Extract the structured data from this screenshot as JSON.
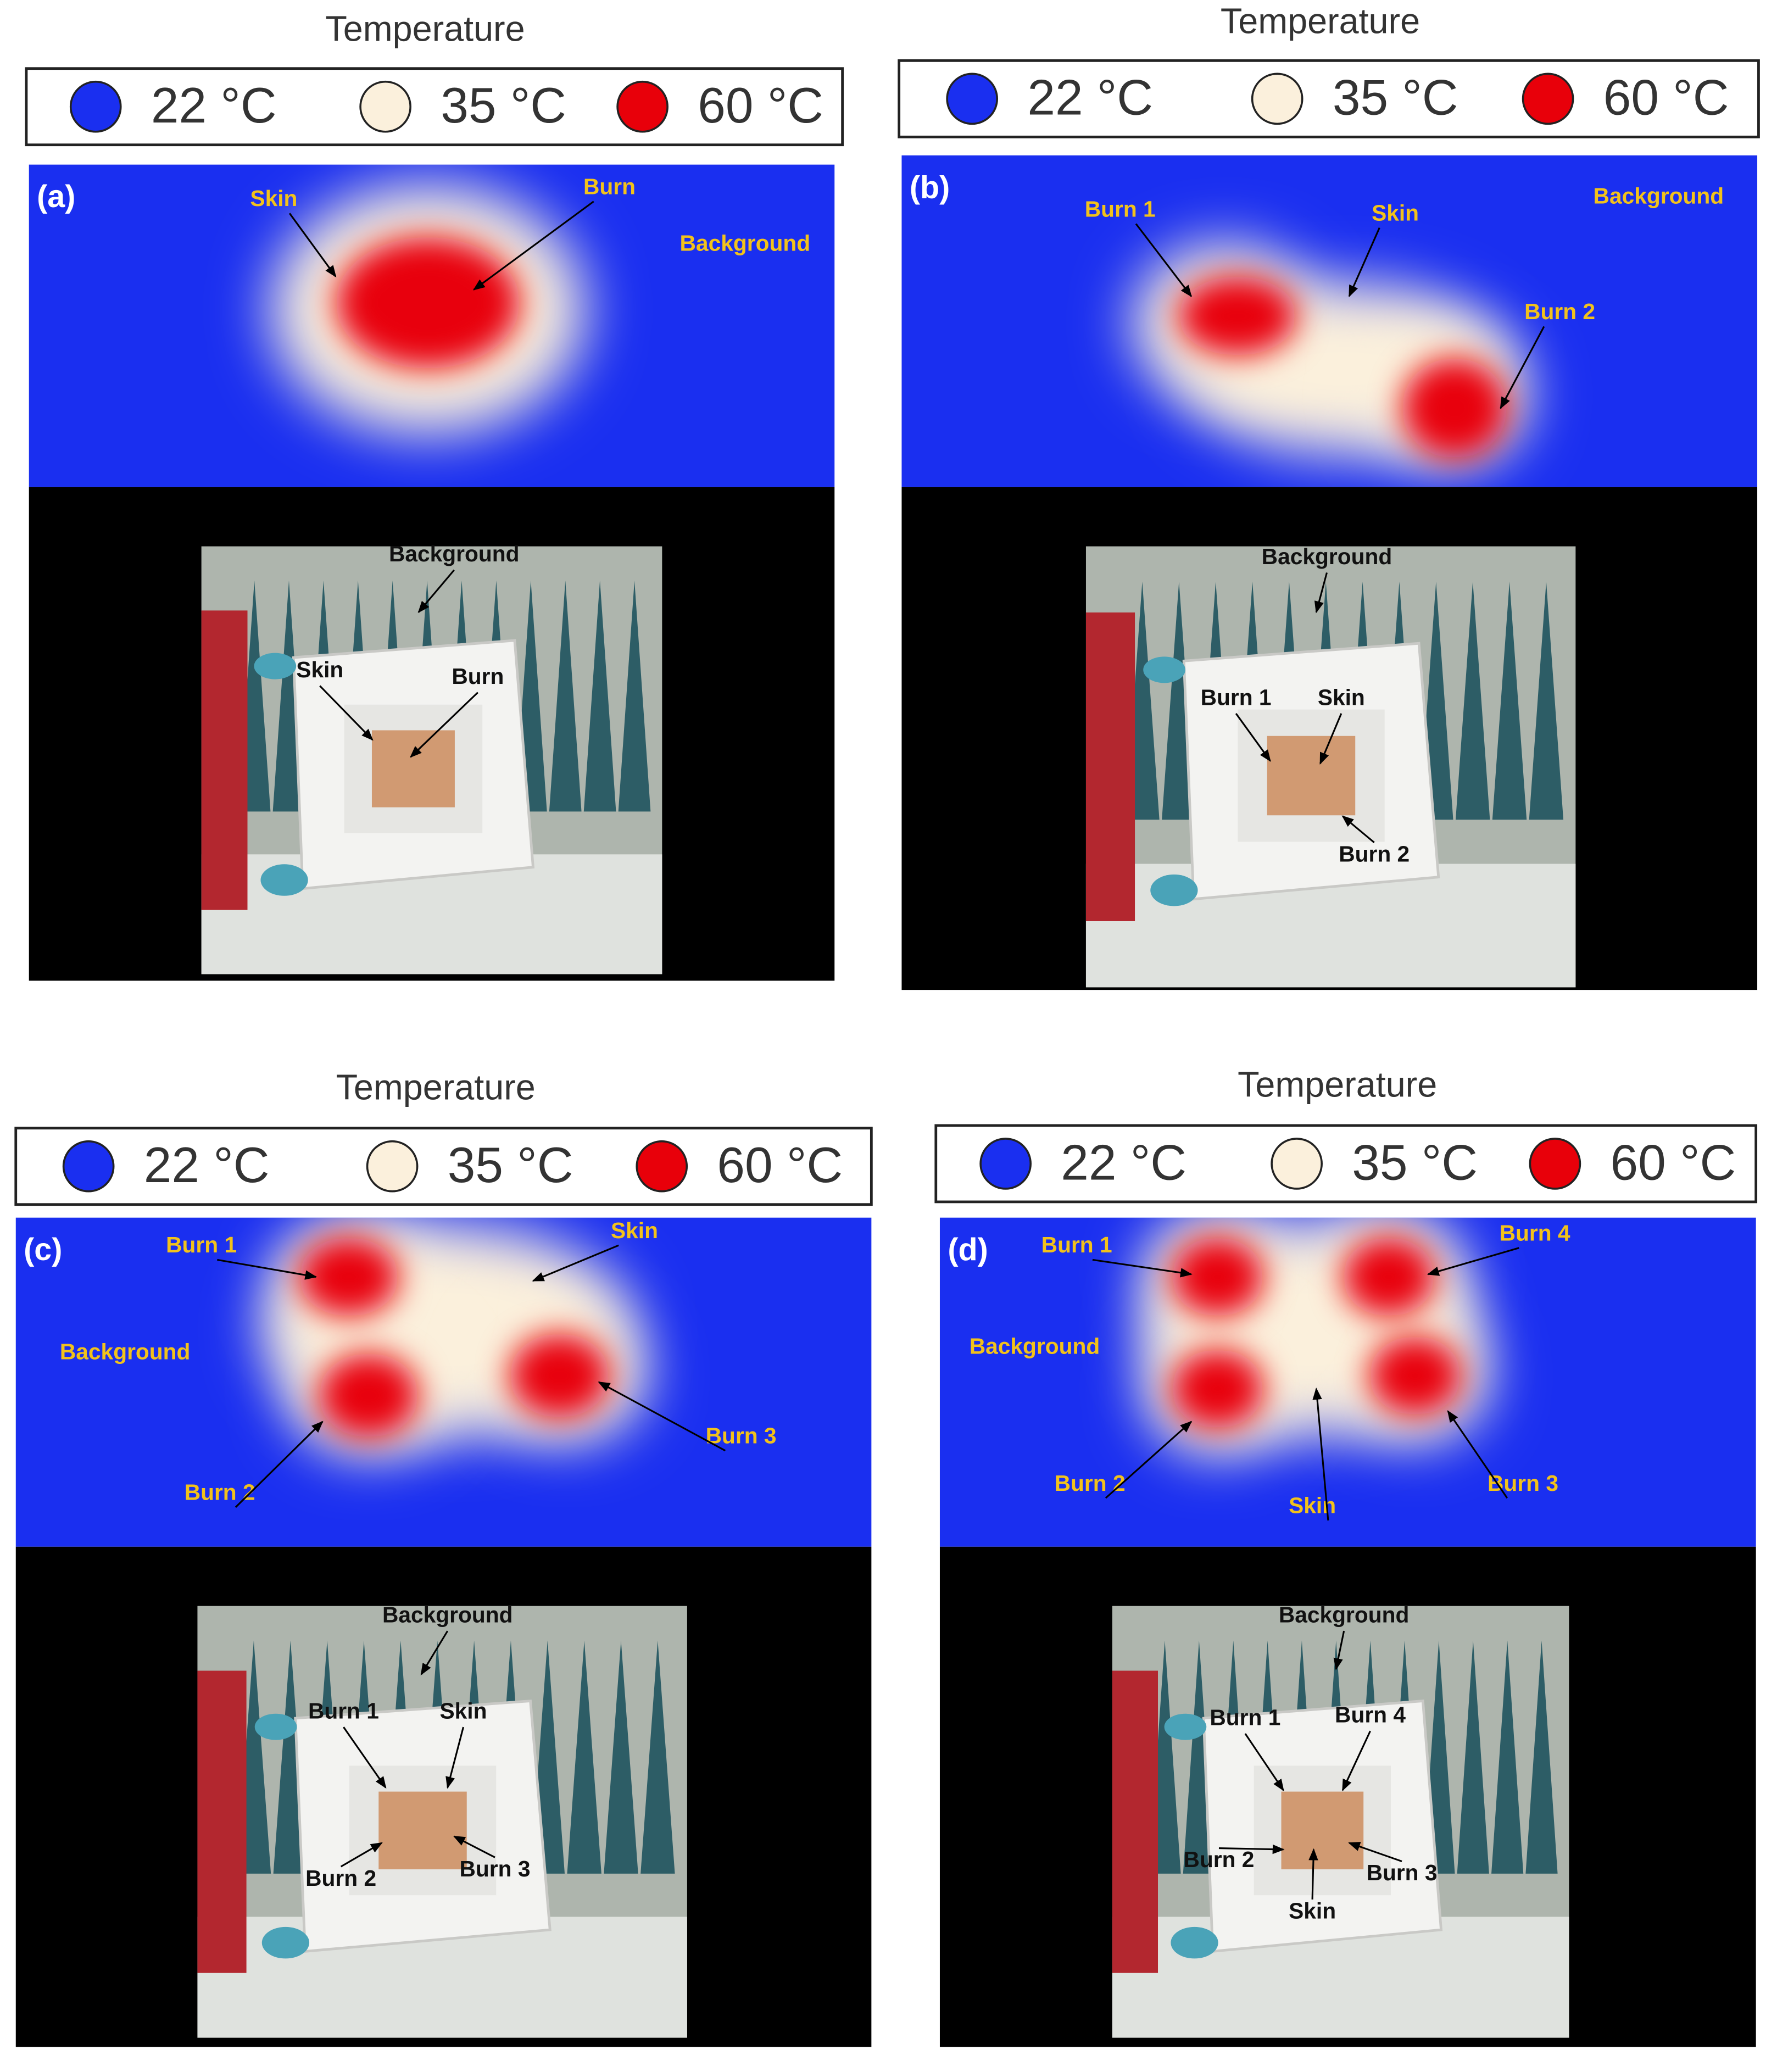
{
  "panels": [
    {
      "label": "(a)",
      "title": "Temperature",
      "legend": [
        {
          "text": "22 °C",
          "color": "#1a2ff0"
        },
        {
          "text": "35 °C",
          "color": "#fbf0dc"
        },
        {
          "text": "60 °C",
          "color": "#e8000a"
        }
      ],
      "thermal_labels": [
        "Skin",
        "Burn",
        "Background"
      ],
      "photo_labels": [
        "Background",
        "Skin",
        "Burn"
      ]
    },
    {
      "label": "(b)",
      "title": "Temperature",
      "legend": [
        {
          "text": "22 °C",
          "color": "#1a2ff0"
        },
        {
          "text": "35 °C",
          "color": "#fbf0dc"
        },
        {
          "text": "60 °C",
          "color": "#e8000a"
        }
      ],
      "thermal_labels": [
        "Burn 1",
        "Skin",
        "Background",
        "Burn 2"
      ],
      "photo_labels": [
        "Background",
        "Burn 1",
        "Skin",
        "Burn 2"
      ]
    },
    {
      "label": "(c)",
      "title": "Temperature",
      "legend": [
        {
          "text": "22 °C",
          "color": "#1a2ff0"
        },
        {
          "text": "35 °C",
          "color": "#fbf0dc"
        },
        {
          "text": "60 °C",
          "color": "#e8000a"
        }
      ],
      "thermal_labels": [
        "Burn 1",
        "Skin",
        "Background",
        "Burn 3",
        "Burn 2"
      ],
      "photo_labels": [
        "Background",
        "Burn 1",
        "Skin",
        "Burn 2",
        "Burn 3"
      ]
    },
    {
      "label": "(d)",
      "title": "Temperature",
      "legend": [
        {
          "text": "22 °C",
          "color": "#1a2ff0"
        },
        {
          "text": "35 °C",
          "color": "#fbf0dc"
        },
        {
          "text": "60 °C",
          "color": "#e8000a"
        }
      ],
      "thermal_labels": [
        "Burn 1",
        "Burn 4",
        "Background",
        "Burn 2",
        "Skin",
        "Burn 3"
      ],
      "photo_labels": [
        "Background",
        "Burn 1",
        "Burn 4",
        "Burn 2",
        "Burn 3",
        "Skin"
      ]
    }
  ]
}
